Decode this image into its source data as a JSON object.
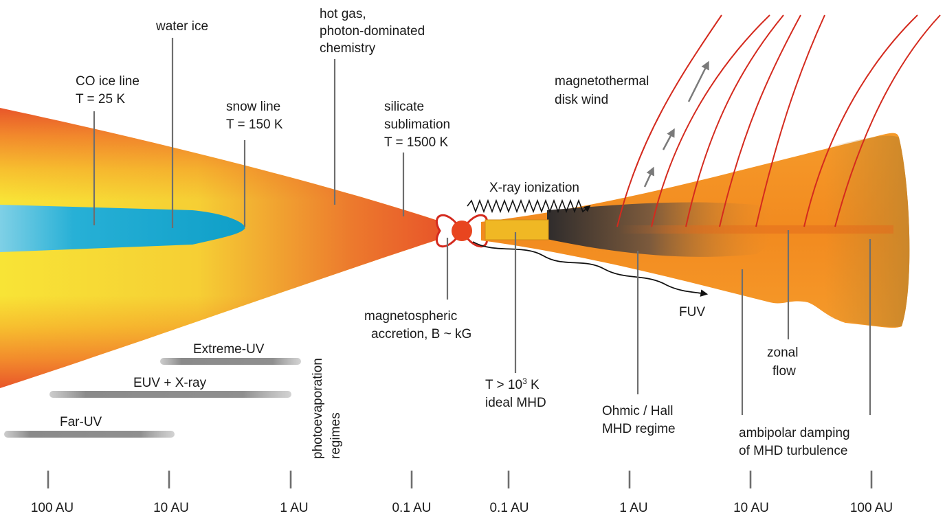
{
  "colors": {
    "disk_yellow": "#f7e433",
    "disk_orange": "#f29a2e",
    "disk_red": "#e8562a",
    "ice_blue": "#12a5cc",
    "star": "#e8451f",
    "field_line": "#d42a1e",
    "leader_gray": "#6e6e6e"
  },
  "labels": {
    "co_ice_line": [
      "CO ice line",
      "T = 25 K"
    ],
    "water_ice": "water ice",
    "snow_line": [
      "snow line",
      "T = 150 K"
    ],
    "hot_gas": [
      "hot gas,",
      "photon-dominated",
      "chemistry"
    ],
    "silicate": [
      "silicate",
      "sublimation",
      "T = 1500 K"
    ],
    "wind": [
      "magnetothermal",
      "disk wind"
    ],
    "xray": "X-ray ionization",
    "fuv": "FUV",
    "magnetospheric": [
      "magnetospheric",
      "accretion, B ~ kG"
    ],
    "ideal_mhd": {
      "t_prefix": "T > 10",
      "t_exp": "3",
      "t_suffix": " K",
      "line2": "ideal MHD"
    },
    "ohmic": [
      "Ohmic / Hall",
      "MHD regime"
    ],
    "zonal": [
      "zonal",
      "flow"
    ],
    "ambipolar": [
      "ambipolar damping",
      "of MHD turbulence"
    ],
    "photoevap": [
      "photoevaporation",
      "regimes"
    ]
  },
  "photoevaporation": {
    "extreme_uv": "Extreme-UV",
    "euv_xray": "EUV + X-ray",
    "far_uv": "Far-UV"
  },
  "axis": {
    "ticks": [
      "100 AU",
      "10 AU",
      "1 AU",
      "0.1 AU",
      "0.1 AU",
      "1 AU",
      "10 AU",
      "100 AU"
    ]
  }
}
